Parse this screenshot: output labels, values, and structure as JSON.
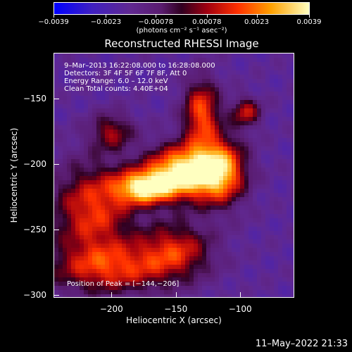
{
  "chart_data": {
    "type": "heatmap",
    "title": "Reconstructed RHESSI Image",
    "xlabel": "Heliocentric X (arcsec)",
    "ylabel": "Heliocentric Y (arcsec)",
    "xlim": [
      -245,
      -58
    ],
    "ylim": [
      -302,
      -115
    ],
    "xticks": [
      -200,
      -150,
      -100
    ],
    "xtick_labels": [
      "−200",
      "−150",
      "−100"
    ],
    "yticks": [
      -300,
      -250,
      -200,
      -150
    ],
    "ytick_labels": [
      "−300",
      "−250",
      "−200",
      "−150"
    ],
    "colorbar": {
      "range": [
        -0.0039,
        0.0039
      ],
      "ticks": [
        -0.0039,
        -0.0023,
        -0.00078,
        0.00078,
        0.0023,
        0.0039
      ],
      "tick_labels": [
        "−0.0039",
        "−0.0023",
        "−0.00078",
        "0.00078",
        "0.0023",
        "0.0039"
      ],
      "units_label": "(photons cm⁻² s⁻¹ asec⁻²)"
    },
    "annotations": [
      "9–Mar–2013 16:22:08.000 to 16:28:08.000",
      "Detectors: 3F 4F 5F 6F 7F 8F, Att 0",
      "Energy Range: 6.0 – 12.0 keV",
      "Clean     Total counts: 4.40E+04"
    ],
    "peak_label": "Position of Peak = [−144,−206]",
    "peak_position": [
      -144,
      -206
    ],
    "blobs": [
      {
        "x": -144,
        "y": -206,
        "sx": 20,
        "sy": 14,
        "amp": 0.0039
      },
      {
        "x": -175,
        "y": -218,
        "sx": 16,
        "sy": 9,
        "amp": 0.003
      },
      {
        "x": -115,
        "y": -205,
        "sx": 14,
        "sy": 18,
        "amp": 0.0024
      },
      {
        "x": -130,
        "y": -160,
        "sx": 10,
        "sy": 18,
        "amp": 0.0018
      },
      {
        "x": -215,
        "y": -235,
        "sx": 22,
        "sy": 25,
        "amp": 0.0016
      },
      {
        "x": -200,
        "y": -280,
        "sx": 35,
        "sy": 14,
        "amp": 0.0013
      },
      {
        "x": -150,
        "y": -265,
        "sx": 20,
        "sy": 15,
        "amp": 0.001
      },
      {
        "x": -95,
        "y": -160,
        "sx": 8,
        "sy": 8,
        "amp": 0.001
      },
      {
        "x": -200,
        "y": -175,
        "sx": 12,
        "sy": 10,
        "amp": 0.0006
      }
    ],
    "background": -0.0017
  },
  "timestamp": "11–May–2022 21:33"
}
